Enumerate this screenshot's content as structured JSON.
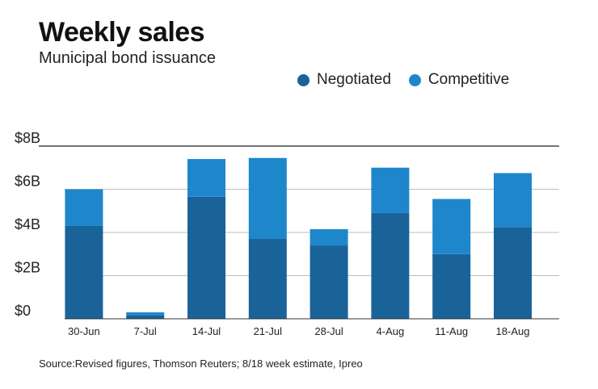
{
  "chart_data": {
    "type": "bar",
    "stacked": true,
    "title": "Weekly sales",
    "subtitle": "Municipal bond issuance",
    "categories": [
      "30-Jun",
      "7-Jul",
      "14-Jul",
      "21-Jul",
      "28-Jul",
      "4-Aug",
      "11-Aug",
      "18-Aug"
    ],
    "series": [
      {
        "name": "Negotiated",
        "values": [
          4.3,
          0.15,
          5.65,
          3.7,
          3.4,
          4.9,
          3.0,
          4.25
        ]
      },
      {
        "name": "Competitive",
        "values": [
          1.7,
          0.15,
          1.75,
          3.75,
          0.75,
          2.1,
          2.55,
          2.5
        ]
      }
    ],
    "ylim": [
      0,
      8
    ],
    "yticks": [
      0,
      2,
      4,
      6,
      8
    ],
    "ytick_labels": [
      "$0",
      "$2B",
      "$4B",
      "$6B",
      "$8B"
    ],
    "xlabel": "",
    "ylabel": "",
    "grid": true,
    "legend_position": "top-right",
    "source": "Source:Revised figures, Thomson Reuters; 8/18 week estimate, Ipreo"
  },
  "colors": {
    "negotiated": "#1a6399",
    "competitive": "#1e87cc",
    "grid": "#bdbdbd",
    "gridTop": "#222222",
    "baseline": "#333333"
  }
}
